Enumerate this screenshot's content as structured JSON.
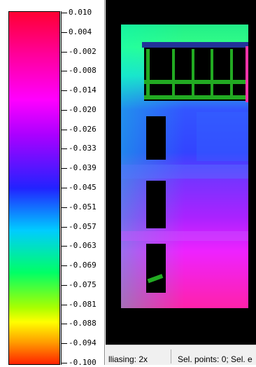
{
  "scale": {
    "ticks": [
      "0.010",
      "0.004",
      "-0.002",
      "-0.008",
      "-0.014",
      "-0.020",
      "-0.026",
      "-0.033",
      "-0.039",
      "-0.045",
      "-0.051",
      "-0.057",
      "-0.063",
      "-0.069",
      "-0.075",
      "-0.081",
      "-0.088",
      "-0.094",
      "-0.100"
    ],
    "colors": [
      "#ff0033",
      "#ff00ff",
      "#2222ff",
      "#00ccff",
      "#00ff66",
      "#ffff00",
      "#ff2200"
    ]
  },
  "status_bar": {
    "antialiasing": "lliasing: 2x",
    "selection": "Sel. points: 0;  Sel. e"
  },
  "view": {
    "background": "#000000"
  }
}
